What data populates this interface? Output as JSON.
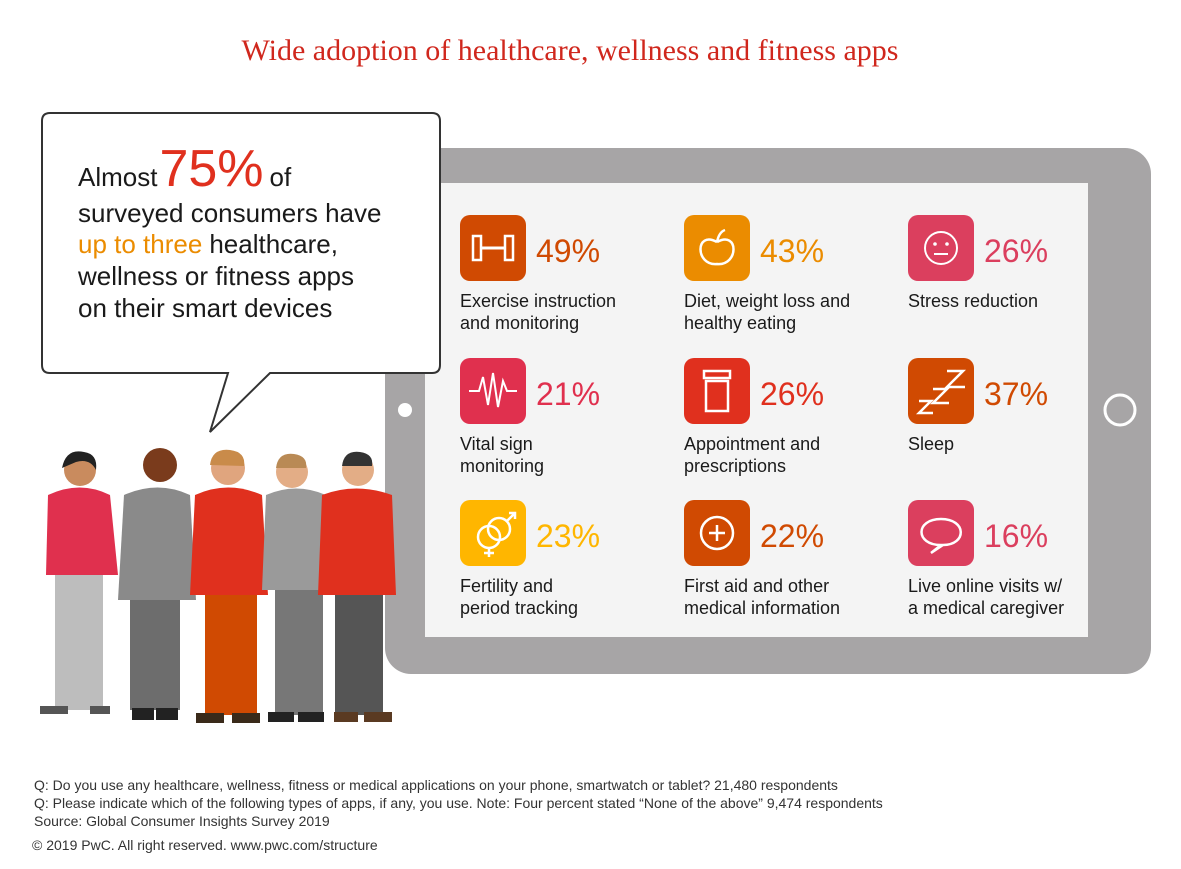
{
  "title": "Wide adoption of healthcare, wellness and fitness apps",
  "callout": {
    "prefix": "Almost",
    "highlight": "75%",
    "suffix": "of",
    "line2": "surveyed consumers have",
    "line3_highlight": "up to three",
    "line3_rest": "healthcare,",
    "line4": "wellness or fitness apps",
    "line5": "on their smart devices"
  },
  "apps": [
    {
      "value": "49%",
      "label_lines": [
        "Exercise instruction",
        "and monitoring"
      ],
      "color": "#d04a02"
    },
    {
      "value": "43%",
      "label_lines": [
        "Diet, weight loss and",
        "healthy eating"
      ],
      "color": "#eb8c00"
    },
    {
      "value": "26%",
      "label_lines": [
        "Stress reduction"
      ],
      "color": "#db3f5e"
    },
    {
      "value": "21%",
      "label_lines": [
        "Vital sign",
        "monitoring"
      ],
      "color": "#e0304e"
    },
    {
      "value": "26%",
      "label_lines": [
        "Appointment and",
        "prescriptions"
      ],
      "color": "#e0301e"
    },
    {
      "value": "37%",
      "label_lines": [
        "Sleep"
      ],
      "color": "#d04a02"
    },
    {
      "value": "23%",
      "label_lines": [
        "Fertility and",
        "period tracking"
      ],
      "color": "#ffb600"
    },
    {
      "value": "22%",
      "label_lines": [
        "First aid and other",
        "medical information"
      ],
      "color": "#d04a02"
    },
    {
      "value": "16%",
      "label_lines": [
        "Live online visits w/",
        "a medical caregiver"
      ],
      "color": "#db3f5e"
    }
  ],
  "footnotes": [
    "Q: Do you use any healthcare, wellness, fitness or medical applications on your phone, smartwatch or tablet? 21,480 respondents",
    "Q: Please indicate which of the following types of apps, if any, you use. Note: Four percent stated “None of the above” 9,474 respondents",
    "Source: Global Consumer Insights Survey 2019",
    "© 2019 PwC. All right reserved. www.pwc.com/structure"
  ]
}
